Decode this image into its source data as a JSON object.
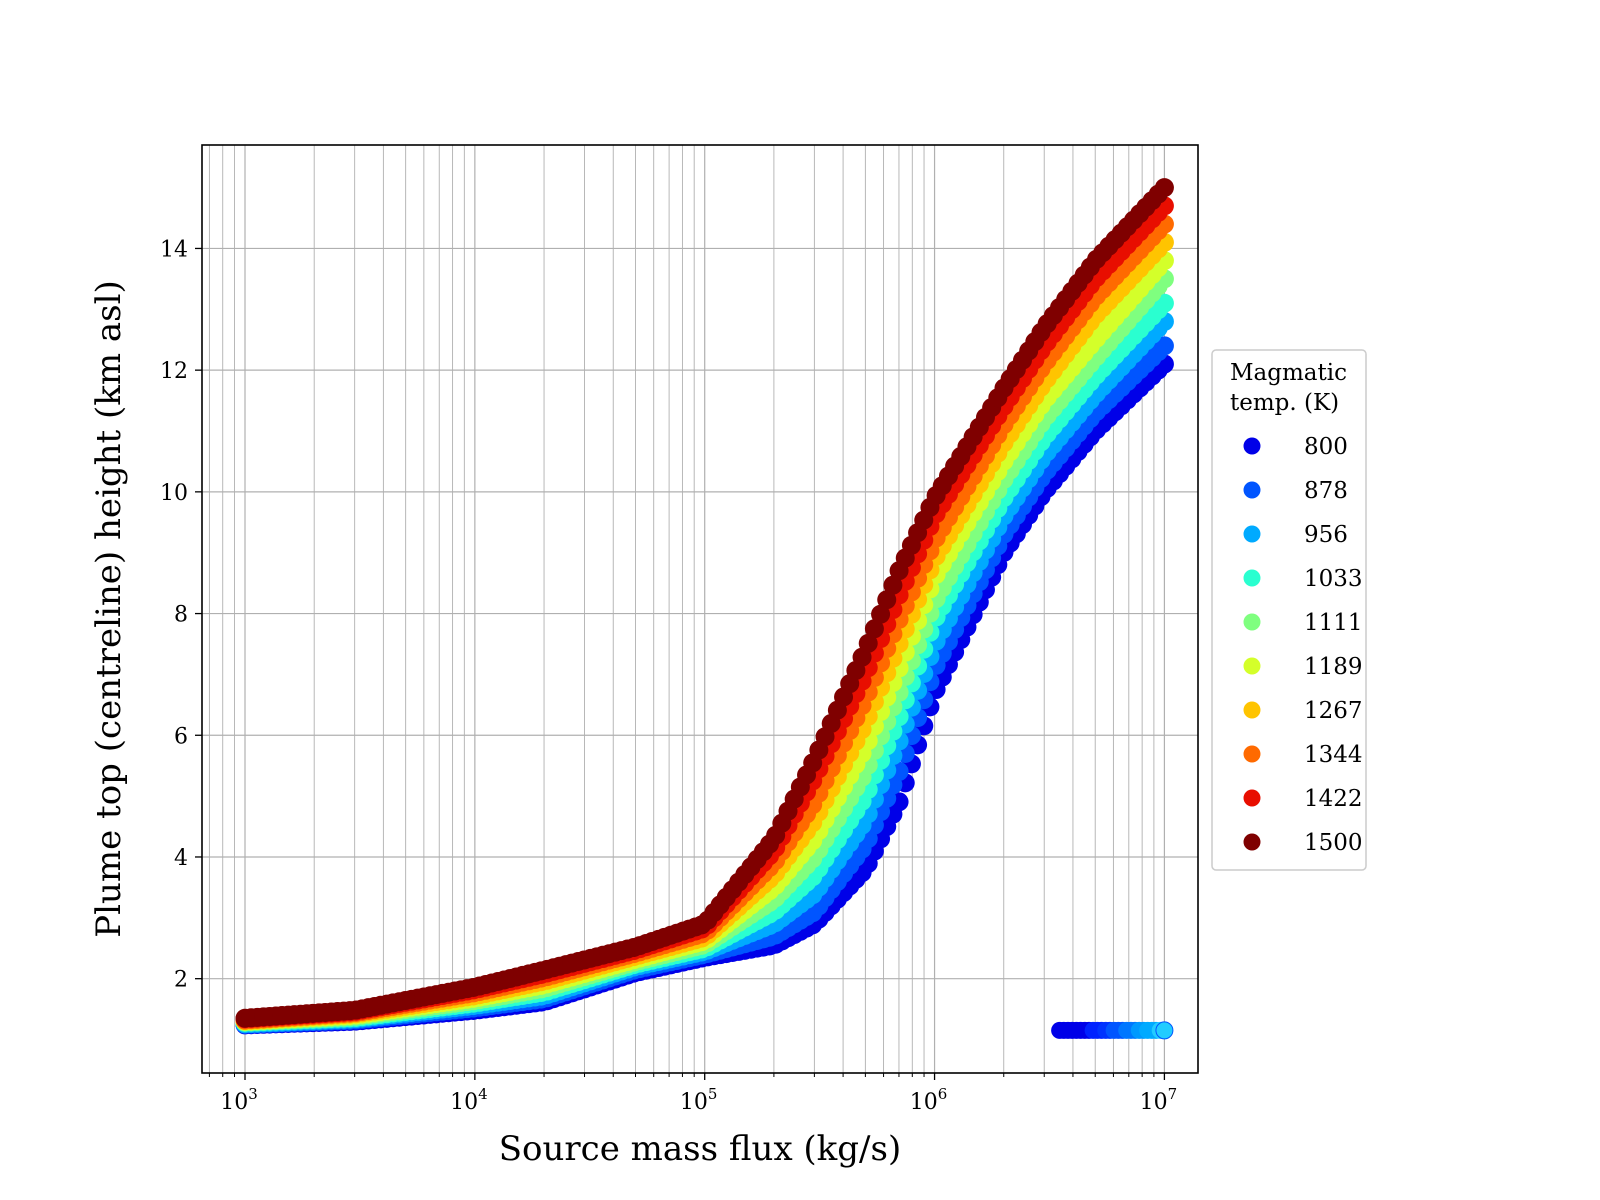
{
  "chart_data": {
    "type": "scatter",
    "title": "",
    "xlabel": "Source mass flux (kg/s)",
    "ylabel": "Plume top (centreline) height (km asl)",
    "xscale": "log",
    "xlim": [
      650,
      14000000
    ],
    "ylim": [
      0.45,
      15.7
    ],
    "x_ticks": [
      1000,
      10000,
      100000,
      1000000,
      10000000
    ],
    "x_tick_labels": [
      {
        "base": "10",
        "exp": "3"
      },
      {
        "base": "10",
        "exp": "4"
      },
      {
        "base": "10",
        "exp": "5"
      },
      {
        "base": "10",
        "exp": "6"
      },
      {
        "base": "10",
        "exp": "7"
      }
    ],
    "y_ticks": [
      2,
      4,
      6,
      8,
      10,
      12,
      14
    ],
    "y_tick_labels": [
      "2",
      "4",
      "6",
      "8",
      "10",
      "12",
      "14"
    ],
    "grid": "major and minor",
    "legend": {
      "title_lines": [
        "Magmatic",
        "temp. (K)"
      ],
      "placement": "outside right",
      "entries": [
        {
          "label": "800",
          "color": "#0000e8"
        },
        {
          "label": "878",
          "color": "#0055ff"
        },
        {
          "label": "956",
          "color": "#00aaff"
        },
        {
          "label": "1033",
          "color": "#2affd0"
        },
        {
          "label": "1111",
          "color": "#7fff7f"
        },
        {
          "label": "1189",
          "color": "#d4ff2a"
        },
        {
          "label": "1267",
          "color": "#ffc400"
        },
        {
          "label": "1344",
          "color": "#ff6a00"
        },
        {
          "label": "1422",
          "color": "#e80e00"
        },
        {
          "label": "1500",
          "color": "#7f0000"
        }
      ]
    },
    "series": [
      {
        "name": "800",
        "color": "#0000e8",
        "x": [
          1000,
          3000,
          10000,
          20000,
          50000,
          100000,
          200000,
          300000,
          500000,
          700000,
          1000000,
          2000000,
          3000000,
          5000000,
          10000000
        ],
        "y": [
          1.24,
          1.3,
          1.48,
          1.62,
          2.1,
          2.35,
          2.55,
          2.9,
          3.8,
          4.9,
          6.7,
          9.0,
          10.0,
          11.0,
          12.1
        ]
      },
      {
        "name": "878",
        "color": "#0055ff",
        "x": [
          1000,
          3000,
          10000,
          20000,
          50000,
          100000,
          200000,
          300000,
          500000,
          700000,
          1000000,
          2000000,
          3000000,
          5000000,
          10000000
        ],
        "y": [
          1.25,
          1.32,
          1.52,
          1.67,
          2.15,
          2.4,
          2.7,
          3.1,
          4.2,
          5.4,
          7.1,
          9.3,
          10.3,
          11.3,
          12.4
        ]
      },
      {
        "name": "956",
        "color": "#00aaff",
        "x": [
          1000,
          3000,
          10000,
          20000,
          50000,
          100000,
          200000,
          300000,
          500000,
          700000,
          1000000,
          2000000,
          3000000,
          5000000,
          10000000
        ],
        "y": [
          1.26,
          1.34,
          1.56,
          1.72,
          2.2,
          2.45,
          2.9,
          3.4,
          4.6,
          5.9,
          7.5,
          9.6,
          10.6,
          11.6,
          12.8
        ]
      },
      {
        "name": "1033",
        "color": "#2affd0",
        "x": [
          1000,
          3000,
          10000,
          20000,
          50000,
          100000,
          200000,
          300000,
          500000,
          700000,
          1000000,
          2000000,
          3000000,
          5000000,
          10000000
        ],
        "y": [
          1.28,
          1.36,
          1.6,
          1.78,
          2.24,
          2.5,
          3.1,
          3.7,
          5.0,
          6.3,
          7.9,
          9.9,
          10.9,
          11.9,
          13.1
        ]
      },
      {
        "name": "1111",
        "color": "#7fff7f",
        "x": [
          1000,
          3000,
          10000,
          20000,
          50000,
          100000,
          200000,
          300000,
          500000,
          700000,
          1000000,
          2000000,
          3000000,
          5000000,
          10000000
        ],
        "y": [
          1.29,
          1.38,
          1.64,
          1.84,
          2.28,
          2.56,
          3.3,
          4.0,
          5.4,
          6.7,
          8.2,
          10.2,
          11.2,
          12.2,
          13.5
        ]
      },
      {
        "name": "1189",
        "color": "#d4ff2a",
        "x": [
          1000,
          3000,
          10000,
          20000,
          50000,
          100000,
          200000,
          300000,
          500000,
          700000,
          1000000,
          2000000,
          3000000,
          5000000,
          10000000
        ],
        "y": [
          1.3,
          1.4,
          1.68,
          1.9,
          2.32,
          2.62,
          3.5,
          4.3,
          5.8,
          7.1,
          8.6,
          10.5,
          11.5,
          12.5,
          13.8
        ]
      },
      {
        "name": "1267",
        "color": "#ffc400",
        "x": [
          1000,
          3000,
          10000,
          20000,
          50000,
          100000,
          200000,
          300000,
          500000,
          700000,
          1000000,
          2000000,
          3000000,
          5000000,
          10000000
        ],
        "y": [
          1.31,
          1.42,
          1.72,
          1.96,
          2.37,
          2.68,
          3.7,
          4.6,
          6.2,
          7.5,
          8.9,
          10.8,
          11.8,
          12.9,
          14.1
        ]
      },
      {
        "name": "1344",
        "color": "#ff6a00",
        "x": [
          1000,
          3000,
          10000,
          20000,
          50000,
          100000,
          200000,
          300000,
          500000,
          700000,
          1000000,
          2000000,
          3000000,
          5000000,
          10000000
        ],
        "y": [
          1.32,
          1.44,
          1.77,
          2.02,
          2.42,
          2.75,
          3.9,
          4.9,
          6.6,
          7.9,
          9.2,
          11.1,
          12.1,
          13.2,
          14.4
        ]
      },
      {
        "name": "1422",
        "color": "#e80e00",
        "x": [
          1000,
          3000,
          10000,
          20000,
          50000,
          100000,
          200000,
          300000,
          500000,
          700000,
          1000000,
          2000000,
          3000000,
          5000000,
          10000000
        ],
        "y": [
          1.34,
          1.46,
          1.82,
          2.08,
          2.47,
          2.83,
          4.1,
          5.3,
          7.0,
          8.3,
          9.6,
          11.4,
          12.4,
          13.5,
          14.7
        ]
      },
      {
        "name": "1500",
        "color": "#7f0000",
        "x": [
          1000,
          3000,
          10000,
          20000,
          50000,
          100000,
          200000,
          300000,
          500000,
          700000,
          1000000,
          2000000,
          3000000,
          5000000,
          10000000
        ],
        "y": [
          1.35,
          1.48,
          1.86,
          2.14,
          2.52,
          2.9,
          4.3,
          5.6,
          7.4,
          8.7,
          9.9,
          11.7,
          12.7,
          13.8,
          15.0
        ]
      },
      {
        "name": "",
        "color": "#0000e8",
        "x": [
          3500000,
          4000000,
          4500000,
          5000000,
          5500000,
          6000000,
          7000000,
          8000000,
          9000000,
          10000000
        ],
        "y": [
          1.15,
          1.15,
          1.15,
          1.15,
          1.15,
          1.15,
          1.15,
          1.15,
          1.15,
          1.15
        ],
        "colors": [
          "#0000e8",
          "#0000e8",
          "#0000e8",
          "#0022ff",
          "#0033ff",
          "#0055ff",
          "#0077ff",
          "#0099ff",
          "#00aaff",
          "#22ccff"
        ]
      }
    ]
  }
}
